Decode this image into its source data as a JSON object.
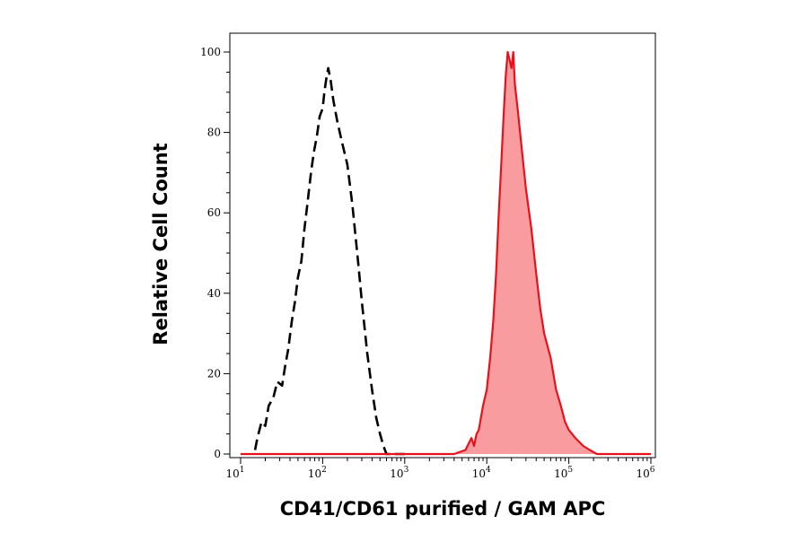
{
  "chart_data": {
    "type": "area",
    "xlabel": "CD41/CD61 purified / GAM APC",
    "ylabel": "Relative Cell Count",
    "x_scale": "log",
    "xlim": [
      10,
      1000000
    ],
    "ylim": [
      0,
      100
    ],
    "x_ticks": [
      {
        "base": "10",
        "exp": "1"
      },
      {
        "base": "10",
        "exp": "2"
      },
      {
        "base": "10",
        "exp": "3"
      },
      {
        "base": "10",
        "exp": "4"
      },
      {
        "base": "10",
        "exp": "5"
      },
      {
        "base": "10",
        "exp": "6"
      }
    ],
    "y_ticks": [
      "0",
      "20",
      "40",
      "60",
      "80",
      "100"
    ],
    "grid": false,
    "legend": "none",
    "series": [
      {
        "style": "dashed",
        "color": "#000000",
        "fill": "none",
        "points": [
          [
            15,
            1
          ],
          [
            16,
            4
          ],
          [
            18,
            8
          ],
          [
            20,
            7
          ],
          [
            22,
            12
          ],
          [
            25,
            14
          ],
          [
            28,
            18
          ],
          [
            32,
            17
          ],
          [
            35,
            22
          ],
          [
            38,
            26
          ],
          [
            42,
            33
          ],
          [
            46,
            38
          ],
          [
            50,
            44
          ],
          [
            55,
            48
          ],
          [
            60,
            56
          ],
          [
            65,
            62
          ],
          [
            72,
            70
          ],
          [
            78,
            75
          ],
          [
            85,
            79
          ],
          [
            92,
            84
          ],
          [
            100,
            86
          ],
          [
            105,
            90
          ],
          [
            110,
            93
          ],
          [
            117,
            96
          ],
          [
            125,
            93
          ],
          [
            135,
            88
          ],
          [
            150,
            83
          ],
          [
            170,
            78
          ],
          [
            200,
            72
          ],
          [
            230,
            62
          ],
          [
            270,
            48
          ],
          [
            300,
            38
          ],
          [
            350,
            25
          ],
          [
            400,
            16
          ],
          [
            450,
            9
          ],
          [
            500,
            5
          ],
          [
            550,
            2
          ],
          [
            600,
            0
          ],
          [
            1000,
            0
          ]
        ]
      },
      {
        "style": "solid",
        "color": "#e8111b",
        "fill": "#f89c9f",
        "points": [
          [
            10,
            0
          ],
          [
            4000,
            0
          ],
          [
            5500,
            1
          ],
          [
            6500,
            4
          ],
          [
            7000,
            2
          ],
          [
            7500,
            5
          ],
          [
            8000,
            6
          ],
          [
            9000,
            12
          ],
          [
            10000,
            16
          ],
          [
            11000,
            24
          ],
          [
            12000,
            33
          ],
          [
            13000,
            45
          ],
          [
            14000,
            60
          ],
          [
            15000,
            72
          ],
          [
            16000,
            84
          ],
          [
            17000,
            94
          ],
          [
            18000,
            100
          ],
          [
            19000,
            98
          ],
          [
            20000,
            96
          ],
          [
            21000,
            100
          ],
          [
            22000,
            92
          ],
          [
            24000,
            85
          ],
          [
            27000,
            75
          ],
          [
            30000,
            66
          ],
          [
            35000,
            56
          ],
          [
            40000,
            45
          ],
          [
            45000,
            36
          ],
          [
            50000,
            30
          ],
          [
            60000,
            24
          ],
          [
            70000,
            16
          ],
          [
            80000,
            12
          ],
          [
            90000,
            8
          ],
          [
            100000,
            6
          ],
          [
            120000,
            4
          ],
          [
            150000,
            2
          ],
          [
            180000,
            1
          ],
          [
            220000,
            0
          ],
          [
            1000000,
            0
          ]
        ]
      }
    ]
  }
}
